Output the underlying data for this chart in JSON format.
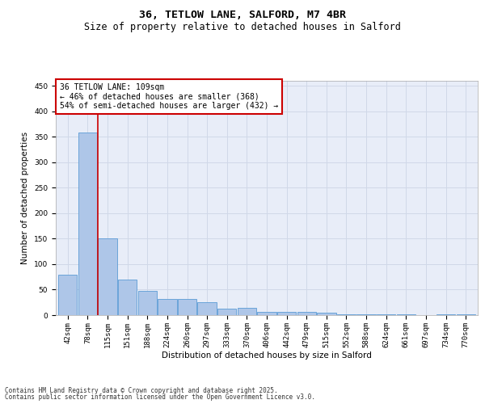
{
  "title_line1": "36, TETLOW LANE, SALFORD, M7 4BR",
  "title_line2": "Size of property relative to detached houses in Salford",
  "xlabel": "Distribution of detached houses by size in Salford",
  "ylabel": "Number of detached properties",
  "categories": [
    "42sqm",
    "78sqm",
    "115sqm",
    "151sqm",
    "188sqm",
    "224sqm",
    "260sqm",
    "297sqm",
    "333sqm",
    "370sqm",
    "406sqm",
    "442sqm",
    "479sqm",
    "515sqm",
    "552sqm",
    "588sqm",
    "624sqm",
    "661sqm",
    "697sqm",
    "734sqm",
    "770sqm"
  ],
  "values": [
    80,
    358,
    150,
    70,
    48,
    32,
    32,
    25,
    12,
    15,
    6,
    7,
    7,
    4,
    2,
    2,
    2,
    1,
    0,
    1,
    2
  ],
  "bar_color": "#aec6e8",
  "bar_edge_color": "#5b9bd5",
  "annotation_line1": "36 TETLOW LANE: 109sqm",
  "annotation_line2": "← 46% of detached houses are smaller (368)",
  "annotation_line3": "54% of semi-detached houses are larger (432) →",
  "annotation_box_color": "#ffffff",
  "annotation_box_edge_color": "#cc0000",
  "red_line_color": "#cc0000",
  "ylim": [
    0,
    460
  ],
  "yticks": [
    0,
    50,
    100,
    150,
    200,
    250,
    300,
    350,
    400,
    450
  ],
  "grid_color": "#d0d8e8",
  "bg_color": "#e8edf8",
  "footer_line1": "Contains HM Land Registry data © Crown copyright and database right 2025.",
  "footer_line2": "Contains public sector information licensed under the Open Government Licence v3.0.",
  "title_fontsize": 9.5,
  "subtitle_fontsize": 8.5,
  "axis_label_fontsize": 7.5,
  "tick_fontsize": 6.5,
  "annotation_fontsize": 7,
  "footer_fontsize": 5.5
}
